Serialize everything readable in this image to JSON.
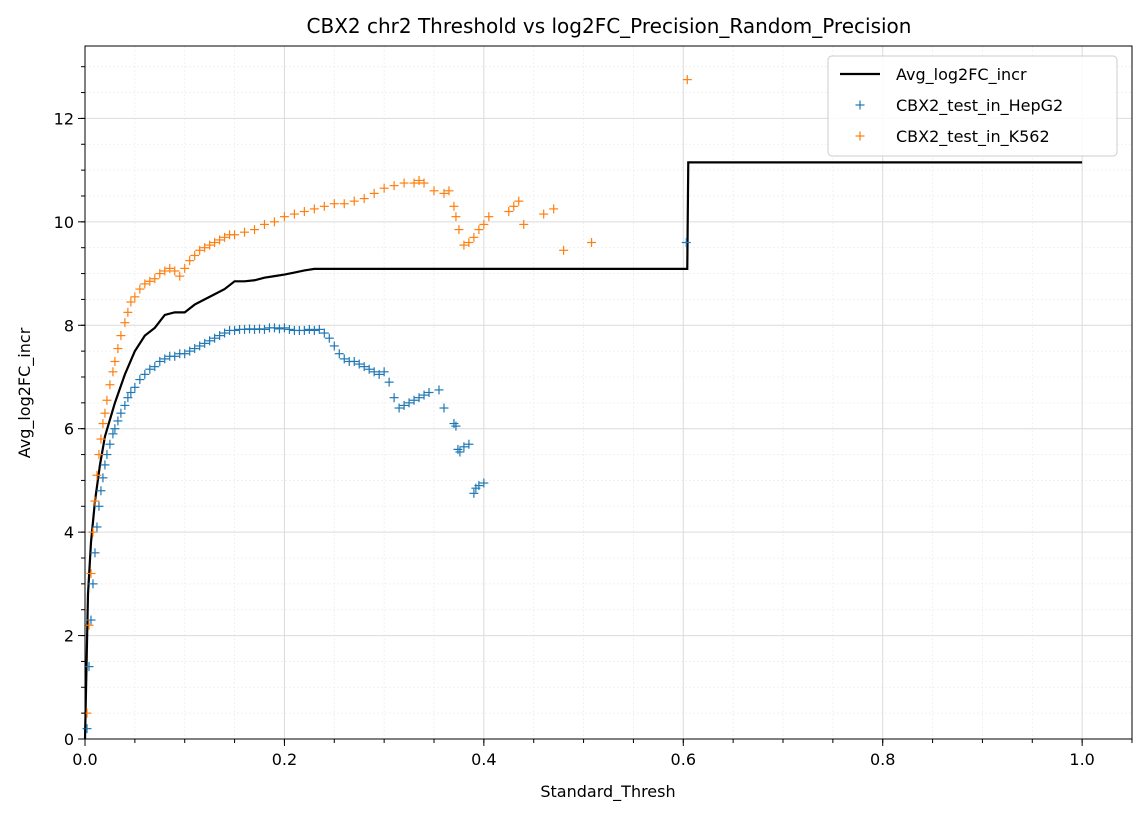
{
  "chart_data": {
    "type": "scatter",
    "title": "CBX2 chr2 Threshold vs log2FC_Precision_Random_Precision",
    "xlabel": "Standard_Thresh",
    "ylabel": "Avg_log2FC_incr",
    "xlim": [
      0.0,
      1.05
    ],
    "ylim": [
      0,
      13.4
    ],
    "x_ticks": [
      0.0,
      0.2,
      0.4,
      0.6,
      0.8,
      1.0
    ],
    "x_tick_labels": [
      "0.0",
      "0.2",
      "0.4",
      "0.6",
      "0.8",
      "1.0"
    ],
    "y_ticks": [
      0,
      2,
      4,
      6,
      8,
      10,
      12
    ],
    "y_tick_labels": [
      "0",
      "2",
      "4",
      "6",
      "8",
      "10",
      "12"
    ],
    "grid": true,
    "minor_grid": true,
    "legend_position": "top-right",
    "series": [
      {
        "name": "Avg_log2FC_incr",
        "kind": "line",
        "color": "#000000",
        "x": [
          0.0,
          0.003,
          0.006,
          0.01,
          0.015,
          0.02,
          0.03,
          0.04,
          0.05,
          0.06,
          0.07,
          0.08,
          0.09,
          0.1,
          0.11,
          0.12,
          0.13,
          0.14,
          0.15,
          0.16,
          0.17,
          0.18,
          0.19,
          0.2,
          0.21,
          0.22,
          0.23,
          0.3,
          0.4,
          0.5,
          0.604,
          0.605,
          0.7,
          0.8,
          0.9,
          1.0
        ],
        "y": [
          0.0,
          2.8,
          3.8,
          4.6,
          5.3,
          5.85,
          6.5,
          7.05,
          7.5,
          7.8,
          7.95,
          8.2,
          8.25,
          8.25,
          8.4,
          8.5,
          8.6,
          8.7,
          8.85,
          8.85,
          8.87,
          8.92,
          8.95,
          8.98,
          9.02,
          9.06,
          9.09,
          9.09,
          9.09,
          9.09,
          9.09,
          11.15,
          11.15,
          11.15,
          11.15,
          11.15
        ]
      },
      {
        "name": "CBX2_test_in_HepG2",
        "kind": "scatter",
        "marker": "+",
        "color": "#1f77b4",
        "x": [
          0.002,
          0.004,
          0.006,
          0.008,
          0.01,
          0.012,
          0.014,
          0.016,
          0.018,
          0.02,
          0.022,
          0.025,
          0.028,
          0.03,
          0.033,
          0.036,
          0.04,
          0.043,
          0.046,
          0.05,
          0.055,
          0.06,
          0.065,
          0.07,
          0.075,
          0.08,
          0.085,
          0.09,
          0.095,
          0.1,
          0.105,
          0.11,
          0.115,
          0.12,
          0.125,
          0.13,
          0.135,
          0.14,
          0.145,
          0.15,
          0.155,
          0.16,
          0.165,
          0.17,
          0.175,
          0.18,
          0.185,
          0.19,
          0.195,
          0.2,
          0.205,
          0.21,
          0.215,
          0.22,
          0.225,
          0.23,
          0.235,
          0.24,
          0.245,
          0.25,
          0.255,
          0.26,
          0.265,
          0.27,
          0.275,
          0.28,
          0.285,
          0.29,
          0.295,
          0.3,
          0.305,
          0.31,
          0.315,
          0.32,
          0.325,
          0.33,
          0.335,
          0.34,
          0.345,
          0.355,
          0.36,
          0.37,
          0.372,
          0.374,
          0.376,
          0.38,
          0.385,
          0.39,
          0.392,
          0.395,
          0.4,
          0.603
        ],
        "y": [
          0.2,
          1.4,
          2.3,
          3.0,
          3.6,
          4.1,
          4.5,
          4.8,
          5.05,
          5.3,
          5.5,
          5.7,
          5.9,
          6.0,
          6.15,
          6.3,
          6.45,
          6.6,
          6.7,
          6.8,
          6.95,
          7.05,
          7.15,
          7.2,
          7.3,
          7.35,
          7.4,
          7.4,
          7.45,
          7.45,
          7.5,
          7.55,
          7.6,
          7.65,
          7.7,
          7.75,
          7.8,
          7.85,
          7.9,
          7.9,
          7.92,
          7.92,
          7.93,
          7.92,
          7.93,
          7.92,
          7.95,
          7.95,
          7.93,
          7.95,
          7.92,
          7.9,
          7.9,
          7.9,
          7.92,
          7.9,
          7.92,
          7.85,
          7.75,
          7.6,
          7.45,
          7.35,
          7.3,
          7.3,
          7.25,
          7.2,
          7.15,
          7.1,
          7.05,
          7.1,
          6.9,
          6.6,
          6.4,
          6.45,
          6.5,
          6.55,
          6.6,
          6.65,
          6.7,
          6.75,
          6.4,
          6.1,
          6.05,
          5.6,
          5.55,
          5.65,
          5.7,
          4.75,
          4.85,
          4.9,
          4.95,
          9.6
        ]
      },
      {
        "name": "CBX2_test_in_K562",
        "kind": "scatter",
        "marker": "+",
        "color": "#ff7f0e",
        "x": [
          0.002,
          0.004,
          0.006,
          0.008,
          0.01,
          0.012,
          0.014,
          0.016,
          0.018,
          0.02,
          0.022,
          0.025,
          0.028,
          0.03,
          0.033,
          0.036,
          0.04,
          0.043,
          0.046,
          0.05,
          0.055,
          0.06,
          0.065,
          0.07,
          0.075,
          0.08,
          0.085,
          0.09,
          0.095,
          0.1,
          0.105,
          0.11,
          0.115,
          0.12,
          0.125,
          0.13,
          0.135,
          0.14,
          0.145,
          0.15,
          0.16,
          0.17,
          0.18,
          0.19,
          0.2,
          0.21,
          0.22,
          0.23,
          0.24,
          0.25,
          0.26,
          0.27,
          0.28,
          0.29,
          0.3,
          0.31,
          0.32,
          0.33,
          0.335,
          0.34,
          0.35,
          0.36,
          0.365,
          0.37,
          0.372,
          0.375,
          0.38,
          0.385,
          0.39,
          0.395,
          0.4,
          0.405,
          0.425,
          0.43,
          0.435,
          0.44,
          0.46,
          0.47,
          0.48,
          0.508,
          0.604
        ],
        "y": [
          0.5,
          2.2,
          3.2,
          4.0,
          4.6,
          5.1,
          5.5,
          5.8,
          6.1,
          6.3,
          6.55,
          6.85,
          7.1,
          7.3,
          7.55,
          7.8,
          8.05,
          8.25,
          8.45,
          8.55,
          8.7,
          8.8,
          8.85,
          8.9,
          9.0,
          9.05,
          9.1,
          9.05,
          8.95,
          9.1,
          9.25,
          9.35,
          9.45,
          9.5,
          9.55,
          9.6,
          9.65,
          9.7,
          9.75,
          9.75,
          9.8,
          9.85,
          9.95,
          10.0,
          10.1,
          10.15,
          10.2,
          10.25,
          10.3,
          10.35,
          10.35,
          10.4,
          10.45,
          10.55,
          10.65,
          10.7,
          10.75,
          10.75,
          10.8,
          10.75,
          10.6,
          10.55,
          10.6,
          10.3,
          10.1,
          9.85,
          9.55,
          9.6,
          9.7,
          9.85,
          9.95,
          10.1,
          10.2,
          10.3,
          10.4,
          9.95,
          10.15,
          10.25,
          9.45,
          9.6,
          12.75
        ]
      }
    ]
  }
}
